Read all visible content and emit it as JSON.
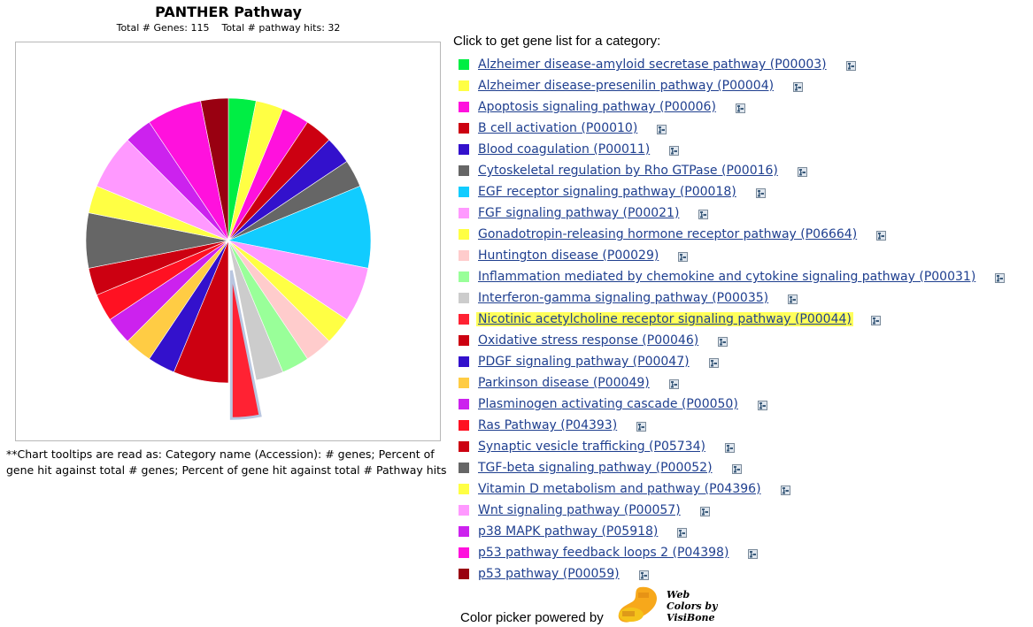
{
  "chart_data": {
    "type": "pie",
    "title": "PANTHER Pathway",
    "subtitle_genes": "Total # Genes: 115",
    "subtitle_hits": "Total # pathway hits: 32",
    "total": 32,
    "exploded": "Nicotinic acetylcholine receptor signaling pathway (P00044)",
    "categories": [
      "Alzheimer disease-amyloid secretase pathway (P00003)",
      "Alzheimer disease-presenilin pathway (P00004)",
      "Apoptosis signaling pathway (P00006)",
      "B cell activation (P00010)",
      "Blood coagulation (P00011)",
      "Cytoskeletal regulation by Rho GTPase (P00016)",
      "EGF receptor signaling pathway (P00018)",
      "FGF signaling pathway (P00021)",
      "Gonadotropin-releasing hormone receptor pathway (P06664)",
      "Huntington disease (P00029)",
      "Inflammation mediated by chemokine and cytokine signaling pathway (P00031)",
      "Interferon-gamma signaling pathway (P00035)",
      "Nicotinic acetylcholine receptor signaling pathway (P00044)",
      "Oxidative stress response (P00046)",
      "PDGF signaling pathway (P00047)",
      "Parkinson disease (P00049)",
      "Plasminogen activating cascade (P00050)",
      "Ras Pathway (P04393)",
      "Synaptic vesicle trafficking (P05734)",
      "TGF-beta signaling pathway (P00052)",
      "Vitamin D metabolism and pathway (P04396)",
      "Wnt signaling pathway (P00057)",
      "p38 MAPK pathway (P05918)",
      "p53 pathway feedback loops 2 (P04398)",
      "p53 pathway (P00059)"
    ],
    "values": [
      1,
      1,
      1,
      1,
      1,
      1,
      3,
      2,
      1,
      1,
      1,
      1,
      1,
      2,
      1,
      1,
      1,
      1,
      1,
      2,
      1,
      2,
      1,
      2,
      1
    ],
    "colors": [
      "#00ee44",
      "#ffff44",
      "#ff11dd",
      "#cc0011",
      "#3311cc",
      "#666666",
      "#11ccff",
      "#ff99ff",
      "#ffff44",
      "#ffcccc",
      "#99ff99",
      "#cccccc",
      "#ff2233",
      "#cc0011",
      "#3311cc",
      "#ffcc44",
      "#cc22ee",
      "#ff1122",
      "#cc0011",
      "#666666",
      "#ffff44",
      "#ff99ff",
      "#cc22ee",
      "#ff11dd",
      "#990011"
    ]
  },
  "note": "**Chart tooltips are read as: Category name (Accession): # genes; Percent of gene hit against total # genes; Percent of gene hit against total # Pathway hits",
  "list_heading": "Click to get gene list for a category:",
  "highlighted_index": 12,
  "icons": {
    "item": "tree-icon",
    "logo": "visibone-logo"
  },
  "footer": {
    "powered_text": "Color picker powered by",
    "logo_line1": "Web",
    "logo_line2": "Colors by",
    "logo_line3": "VisiBone"
  }
}
